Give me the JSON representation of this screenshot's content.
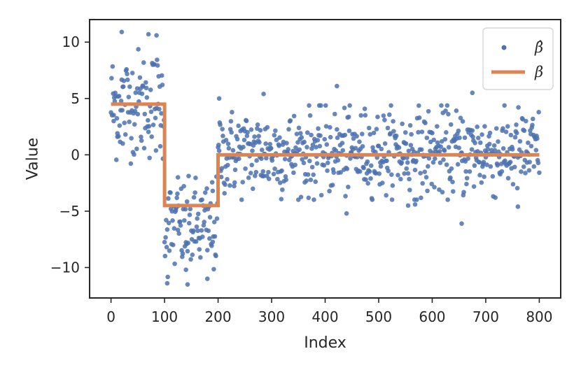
{
  "chart_data": {
    "type": "scatter",
    "title": "",
    "xlabel": "Index",
    "ylabel": "Value",
    "xlim": [
      -40,
      840
    ],
    "ylim": [
      -12.7,
      12.0
    ],
    "xticks": [
      0,
      100,
      200,
      300,
      400,
      500,
      600,
      700,
      800
    ],
    "xtick_labels": [
      "0",
      "100",
      "200",
      "300",
      "400",
      "500",
      "600",
      "700",
      "800"
    ],
    "yticks": [
      10,
      5,
      0,
      -5,
      -10
    ],
    "ytick_labels": [
      "10",
      "5",
      "0",
      "−5",
      "−10"
    ],
    "grid": false,
    "legend_position": "top-right",
    "legend": [
      {
        "label": "β̂",
        "kind": "marker",
        "color": "#4c72b0"
      },
      {
        "label": "β",
        "kind": "line",
        "color": "#dd8452"
      }
    ],
    "series": [
      {
        "name": "β̂",
        "kind": "scatter",
        "color": "#4c72b0",
        "segments": [
          {
            "x_start": 0,
            "x_end": 99,
            "center": 4.5,
            "spread": 2.4,
            "anchors": [
              {
                "x": 20,
                "y": 10.9
              },
              {
                "x": 70,
                "y": 10.7
              },
              {
                "x": 85,
                "y": 10.6
              },
              {
                "x": 22,
                "y": 1.0
              },
              {
                "x": 12,
                "y": 1.6
              },
              {
                "x": 5,
                "y": 3.0
              }
            ]
          },
          {
            "x_start": 100,
            "x_end": 199,
            "center": -6.5,
            "spread": 2.1,
            "anchors": [
              {
                "x": 105,
                "y": -11.4
              },
              {
                "x": 143,
                "y": -11.5
              },
              {
                "x": 140,
                "y": -10.2
              },
              {
                "x": 180,
                "y": -11.0
              },
              {
                "x": 125,
                "y": -2.0
              },
              {
                "x": 190,
                "y": -3.2
              }
            ]
          },
          {
            "x_start": 200,
            "x_end": 800,
            "center": 0.2,
            "spread": 1.9,
            "anchors": [
              {
                "x": 202,
                "y": 5.0
              },
              {
                "x": 285,
                "y": 5.4
              },
              {
                "x": 422,
                "y": 6.1
              },
              {
                "x": 675,
                "y": 5.5
              },
              {
                "x": 440,
                "y": -5.2
              },
              {
                "x": 655,
                "y": -6.1
              },
              {
                "x": 760,
                "y": -4.6
              },
              {
                "x": 555,
                "y": -4.5
              },
              {
                "x": 568,
                "y": -4.4
              }
            ]
          }
        ]
      },
      {
        "name": "β",
        "kind": "step",
        "color": "#dd8452",
        "x": [
          0,
          100,
          100,
          200,
          200,
          800
        ],
        "y": [
          4.5,
          4.5,
          -4.5,
          -4.5,
          0,
          0
        ]
      }
    ]
  }
}
